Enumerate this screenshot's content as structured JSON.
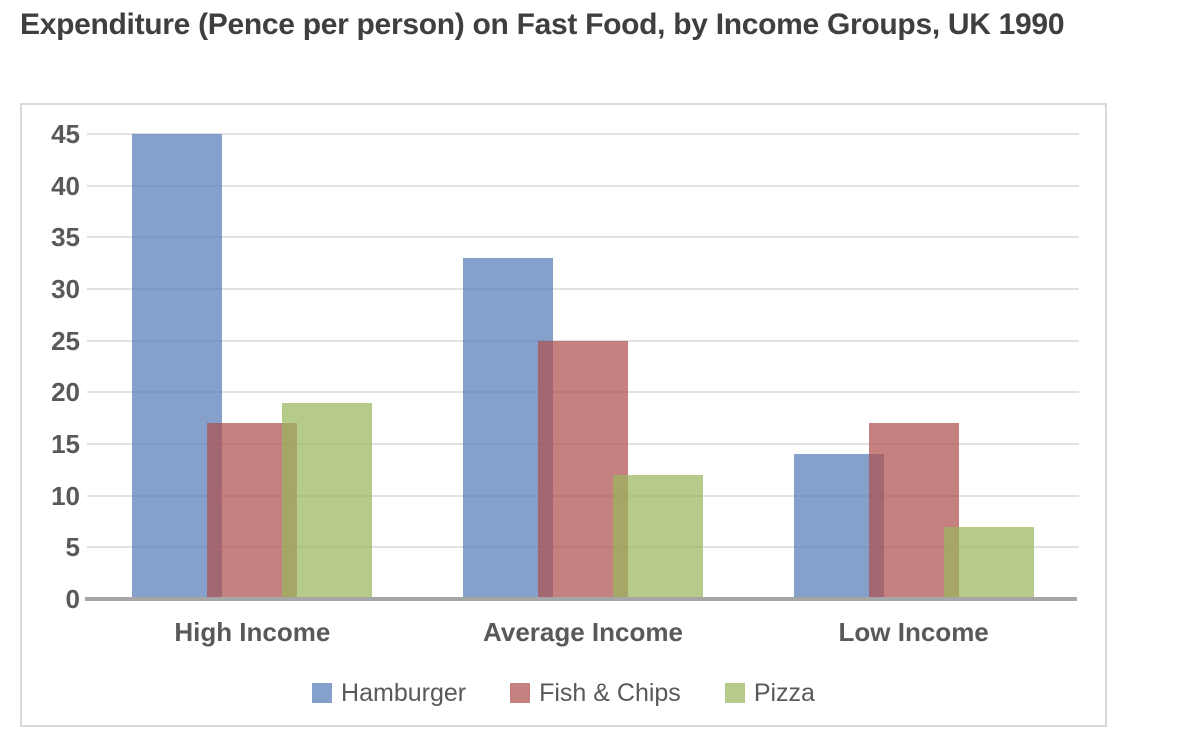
{
  "title": "Expenditure (Pence per person) on Fast Food, by Income Groups, UK 1990",
  "chart_data": {
    "type": "bar",
    "title": "Expenditure (Pence per person) on Fast Food, by Income Groups, UK 1990",
    "categories": [
      "High Income",
      "Average Income",
      "Low Income"
    ],
    "series": [
      {
        "name": "Hamburger",
        "values": [
          45,
          33,
          14
        ],
        "fill": "rgba(88,124,185,0.72)"
      },
      {
        "name": "Fish & Chips",
        "values": [
          17,
          25,
          17
        ],
        "fill": "rgba(175,81,79,0.72)"
      },
      {
        "name": "Pizza",
        "values": [
          19,
          12,
          7
        ],
        "fill": "rgba(154,181,91,0.72)"
      }
    ],
    "xlabel": "",
    "ylabel": "",
    "ylim": [
      0,
      45
    ],
    "yticks": [
      0,
      5,
      10,
      15,
      20,
      25,
      30,
      35,
      40,
      45
    ],
    "grid": true,
    "bar_style": "overlapping",
    "legend_position": "bottom"
  },
  "colors": {
    "title_text": "#3f3f3f",
    "axis_text": "#595959",
    "gridline": "#e2e2e2",
    "axis_line": "#a6a6a6",
    "chart_border": "#d9d9d9",
    "background": "#ffffff"
  }
}
